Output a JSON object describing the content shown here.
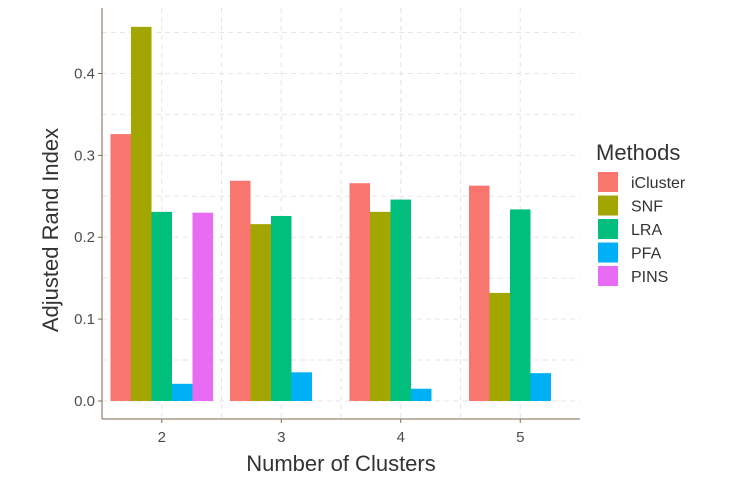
{
  "chart_data": {
    "type": "bar",
    "xlabel": "Number of Clusters",
    "ylabel": "Adjusted Rand Index",
    "categories": [
      "2",
      "3",
      "4",
      "5"
    ],
    "ylim": [
      -0.022,
      0.48
    ],
    "yticks": [
      "0.0",
      "0.1",
      "0.2",
      "0.3",
      "0.4"
    ],
    "grid": true,
    "legend": {
      "title": "Methods",
      "placement": "right"
    },
    "series": [
      {
        "name": "iCluster",
        "color": "#F8766D",
        "values": [
          0.326,
          0.269,
          0.266,
          0.263
        ]
      },
      {
        "name": "SNF",
        "color": "#A3A500",
        "values": [
          0.457,
          0.216,
          0.231,
          0.132
        ]
      },
      {
        "name": "LRA",
        "color": "#00BF7D",
        "values": [
          0.231,
          0.226,
          0.246,
          0.234
        ]
      },
      {
        "name": "PFA",
        "color": "#00B0F6",
        "values": [
          0.021,
          0.035,
          0.015,
          0.034
        ]
      },
      {
        "name": "PINS",
        "color": "#E76BF3",
        "values": [
          0.23,
          null,
          null,
          null
        ]
      }
    ]
  }
}
